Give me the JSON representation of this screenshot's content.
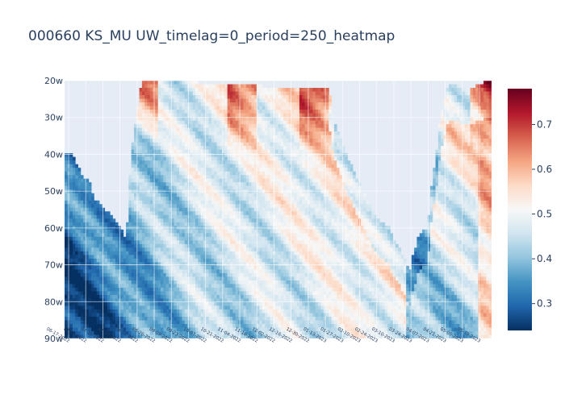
{
  "title": "000660 KS_MU UW_timelag=0_period=250_heatmap",
  "chart_data": {
    "type": "heatmap",
    "title": "000660 KS_MU UW_timelag=0_period=250_heatmap",
    "xlabel": "",
    "ylabel": "",
    "y_categories": [
      "20w",
      "30w",
      "40w",
      "50w",
      "60w",
      "70w",
      "80w",
      "90w"
    ],
    "y_range": [
      20,
      90
    ],
    "x_date_range": [
      "06-17-2022",
      "05-31-2023"
    ],
    "x_tick_labels": [
      "06-17-2022",
      "07-01-2022",
      "07-15-2022",
      "07-29-2022",
      "08-12-2022",
      "08-26-2022",
      "09-09-2022",
      "09-23-2022",
      "10-07-2022",
      "10-21-2022",
      "11-04-2022",
      "11-18-2022",
      "12-02-2022",
      "12-16-2022",
      "12-30-2022",
      "01-13-2023",
      "01-27-2023",
      "02-10-2023",
      "02-24-2023",
      "03-10-2023",
      "03-24-2023",
      "04-07-2023",
      "04-21-2023",
      "05-05-2023",
      "05-19-2023"
    ],
    "colorscale": "RdBu_r",
    "colorbar_range": [
      0.24,
      0.78
    ],
    "colorbar_ticks": [
      "0.3",
      "0.4",
      "0.5",
      "0.6",
      "0.7"
    ],
    "grid": true,
    "plot_background": "#e5ecf6"
  }
}
